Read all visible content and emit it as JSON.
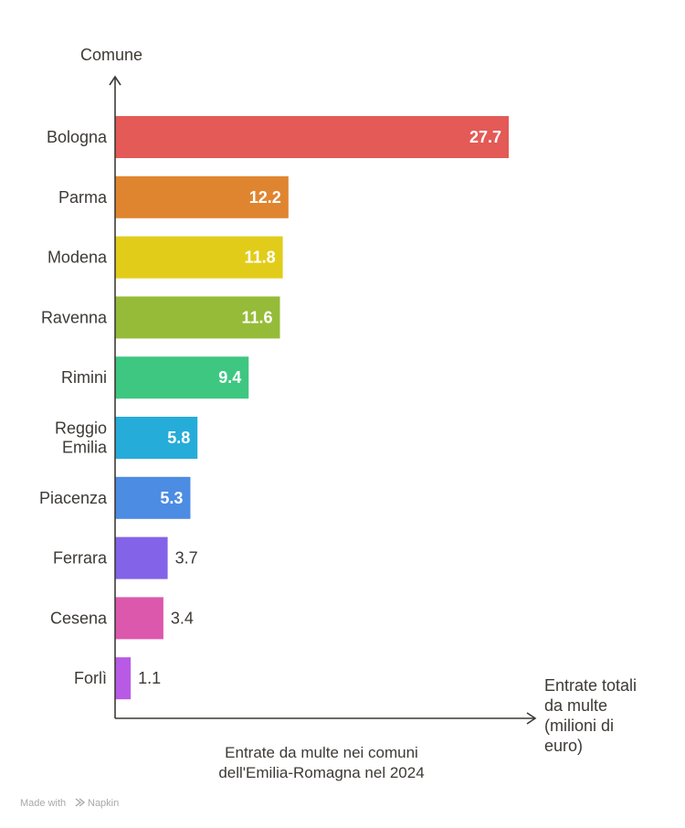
{
  "chart_data": {
    "type": "bar",
    "orientation": "horizontal",
    "categories": [
      [
        "Bologna"
      ],
      [
        "Parma"
      ],
      [
        "Modena"
      ],
      [
        "Ravenna"
      ],
      [
        "Rimini"
      ],
      [
        "Reggio",
        "Emilia"
      ],
      [
        "Piacenza"
      ],
      [
        "Ferrara"
      ],
      [
        "Cesena"
      ],
      [
        "Forlì"
      ]
    ],
    "values": [
      27.7,
      12.2,
      11.8,
      11.6,
      9.4,
      5.8,
      5.3,
      3.7,
      3.4,
      1.1
    ],
    "value_labels": [
      "27.7",
      "12.2",
      "11.8",
      "11.6",
      "9.4",
      "5.8",
      "5.3",
      "3.7",
      "3.4",
      "1.1"
    ],
    "colors": [
      "#e35a56",
      "#e0852f",
      "#e2cc1a",
      "#95bb38",
      "#3ec781",
      "#26acd9",
      "#4c8ce3",
      "#8363e8",
      "#dc58ad",
      "#b85ae6"
    ],
    "ylabel": "Comune",
    "xlabel": [
      "Entrate totali",
      "da multe",
      "(milioni di",
      "euro)"
    ],
    "caption": [
      "Entrate da multe nei comuni",
      "dell'Emilia-Romagna nel 2024"
    ],
    "xlim": [
      0,
      27.7
    ],
    "grid": false,
    "legend": "none"
  },
  "watermark": {
    "prefix": "Made with",
    "brand": "Napkin",
    "icon": "napkin-logo-icon"
  },
  "axis_color": "#3d3a35"
}
